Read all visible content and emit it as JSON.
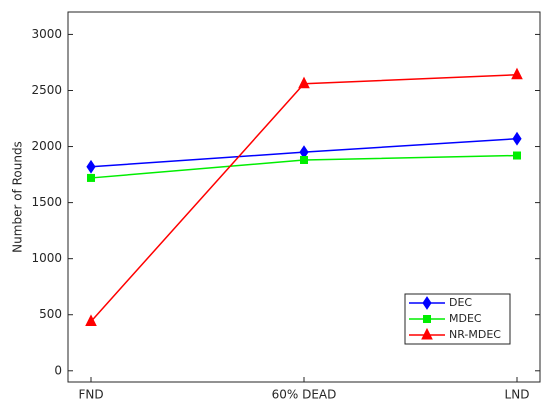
{
  "chart_data": {
    "type": "line",
    "y_label": "Number of Rounds",
    "categories": [
      "FND",
      "60% DEAD",
      "LND"
    ],
    "series": [
      {
        "name": "DEC",
        "color": "#0000ff",
        "marker": "diamond",
        "values": [
          1820,
          1950,
          2070
        ]
      },
      {
        "name": "MDEC",
        "color": "#00ee00",
        "marker": "square",
        "values": [
          1720,
          1880,
          1920
        ]
      },
      {
        "name": "NR-MDEC",
        "color": "#ff0000",
        "marker": "triangle",
        "values": [
          440,
          2560,
          2640
        ]
      }
    ],
    "ylim": [
      -100,
      3200
    ],
    "yticks": [
      0,
      500,
      1000,
      1500,
      2000,
      2500,
      3000
    ],
    "legend": "lower right"
  }
}
